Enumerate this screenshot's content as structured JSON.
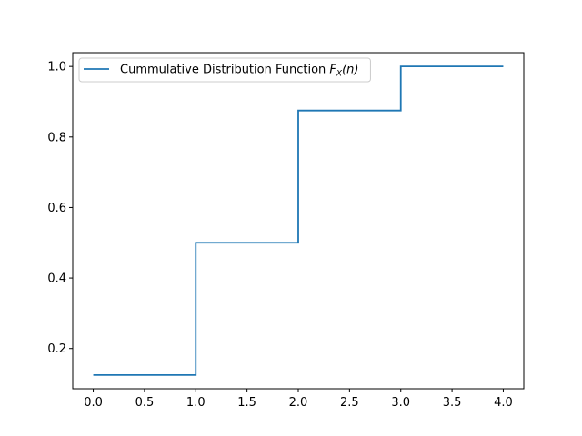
{
  "chart_data": {
    "type": "line",
    "step": "post",
    "xlim": [
      -0.2,
      4.2
    ],
    "ylim": [
      0.0859375,
      1.0390625
    ],
    "x_ticks": [
      0.0,
      0.5,
      1.0,
      1.5,
      2.0,
      2.5,
      3.0,
      3.5,
      4.0
    ],
    "x_tick_labels": [
      "0.0",
      "0.5",
      "1.0",
      "1.5",
      "2.0",
      "2.5",
      "3.0",
      "3.5",
      "4.0"
    ],
    "y_ticks": [
      0.2,
      0.4,
      0.6,
      0.8,
      1.0
    ],
    "y_tick_labels": [
      "0.2",
      "0.4",
      "0.6",
      "0.8",
      "1.0"
    ],
    "grid": false,
    "legend_position": "upper-left",
    "series": [
      {
        "name": "Cummulative Distribution Function F_X(n)",
        "legend_prefix": "Cummulative Distribution Function ",
        "legend_math_main": "F",
        "legend_math_sub": "X",
        "legend_math_arg": "(n)",
        "color": "#1f77b4",
        "x": [
          0,
          1,
          1,
          2,
          2,
          3,
          3,
          4
        ],
        "y": [
          0.125,
          0.125,
          0.5,
          0.5,
          0.875,
          0.875,
          1.0,
          1.0
        ]
      }
    ]
  }
}
